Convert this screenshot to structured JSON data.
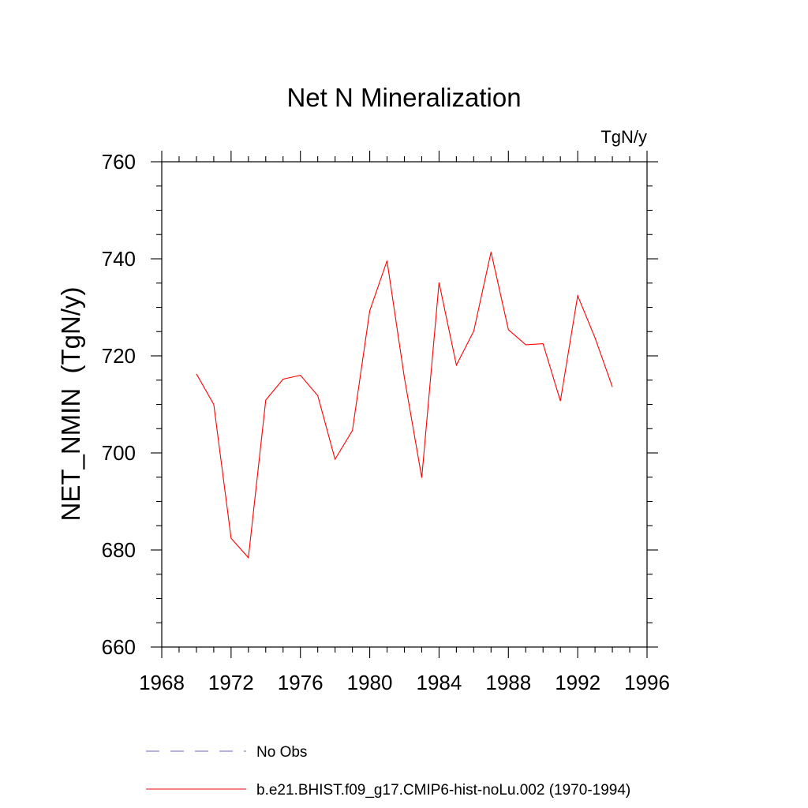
{
  "chart_data": {
    "type": "line",
    "title": "Net N Mineralization",
    "units": "TgN/y",
    "ylabel": "NET_NMIN  (TgN/y)",
    "xlabel": "",
    "xlim": [
      1968,
      1996
    ],
    "ylim": [
      660,
      760
    ],
    "x_major_ticks": [
      1968,
      1972,
      1976,
      1980,
      1984,
      1988,
      1992,
      1996
    ],
    "y_major_ticks": [
      660,
      680,
      700,
      720,
      740,
      760
    ],
    "grid": false,
    "legend_position": "bottom",
    "series": [
      {
        "name": "b.e21.BHIST.f09_g17.CMIP6-hist-noLu.002 (1970-1994)",
        "color": "#ff0000",
        "style": "solid",
        "x": [
          1970,
          1971,
          1972,
          1973,
          1974,
          1975,
          1976,
          1977,
          1978,
          1979,
          1980,
          1981,
          1982,
          1983,
          1984,
          1985,
          1986,
          1987,
          1988,
          1989,
          1990,
          1991,
          1992,
          1993,
          1994
        ],
        "y": [
          716.3,
          710.0,
          682.4,
          678.4,
          710.9,
          715.2,
          716.0,
          711.8,
          698.7,
          704.6,
          729.3,
          739.6,
          715.5,
          694.9,
          735.1,
          718.1,
          725.1,
          741.4,
          725.4,
          722.3,
          722.5,
          710.7,
          732.4,
          723.7,
          713.6
        ]
      }
    ],
    "legend": [
      {
        "label": "No Obs",
        "color": "#6666cc",
        "style": "dashed"
      },
      {
        "label": "b.e21.BHIST.f09_g17.CMIP6-hist-noLu.002 (1970-1994)",
        "color": "#ff0000",
        "style": "solid"
      }
    ]
  }
}
